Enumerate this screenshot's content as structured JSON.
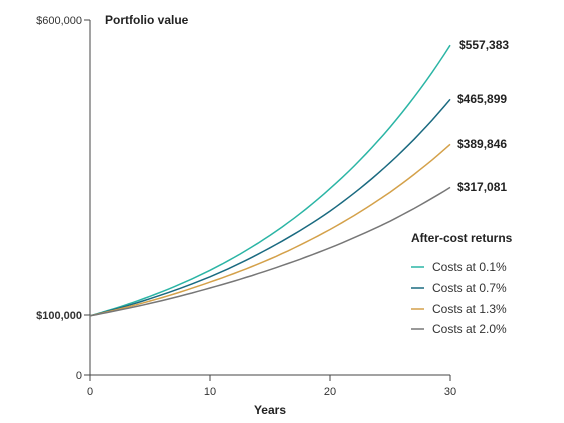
{
  "chart_data": {
    "type": "line",
    "title": "Portfolio value",
    "xlabel": "Years",
    "ylabel": "",
    "xlim": [
      0,
      30
    ],
    "ylim": [
      0,
      600000
    ],
    "x_ticks": [
      0,
      10,
      20,
      30
    ],
    "x_tick_labels": [
      "0",
      "10",
      "20",
      "30"
    ],
    "y_ticks": [
      0,
      100000,
      600000
    ],
    "y_tick_labels": [
      "0",
      "$100,000",
      "$600,000"
    ],
    "legend_title": "After-cost returns",
    "legend_position": "right",
    "grid": false,
    "x": [
      0,
      5,
      10,
      15,
      20,
      25,
      30
    ],
    "series": [
      {
        "name": "Costs at 0.1%",
        "color": "#2bb5a5",
        "values": [
          100000,
          133000,
          177000,
          236000,
          315000,
          419000,
          557383
        ],
        "end_label": "$557,383"
      },
      {
        "name": "Costs at 0.7%",
        "color": "#1a6a80",
        "values": [
          100000,
          129000,
          166000,
          215000,
          277000,
          359000,
          465899
        ],
        "end_label": "$465,899"
      },
      {
        "name": "Costs at 1.3%",
        "color": "#d4a14a",
        "values": [
          100000,
          125000,
          157000,
          196000,
          246000,
          309000,
          389846
        ],
        "end_label": "$389,846"
      },
      {
        "name": "Costs at 2.0%",
        "color": "#777777",
        "values": [
          100000,
          121000,
          147000,
          178000,
          215000,
          260000,
          317081
        ],
        "end_label": "$317,081"
      }
    ]
  }
}
